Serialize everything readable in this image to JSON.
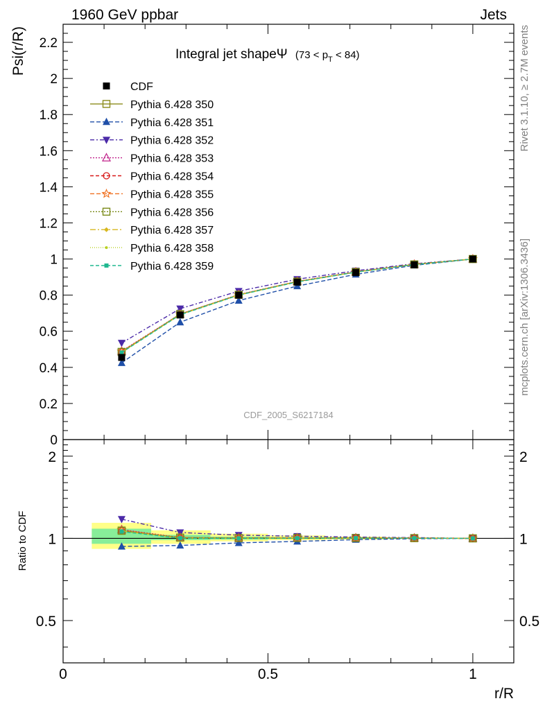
{
  "header": {
    "left": "1960 GeV ppbar",
    "right": "Jets"
  },
  "side_labels": {
    "rivet": "Rivet 3.1.10, ≥ 2.7M events",
    "mcplots": "mcplots.cern.ch [arXiv:1306.3436]"
  },
  "watermark": "CDF_2005_S6217184",
  "chart_data": {
    "type": "line",
    "title": "Integral jet shapeΨ",
    "title_suffix": "(73 < p",
    "title_sub": "T",
    "title_tail": " < 84)",
    "xlabel": "r/R",
    "ylabel": "Psi(r/R)",
    "ratio_ylabel": "Ratio to CDF",
    "xlim": [
      0,
      1.1
    ],
    "ylim": [
      0,
      2.3
    ],
    "ratio_ylim": [
      0.35,
      2.3
    ],
    "x_ticks": [
      "0",
      "0.5",
      "1"
    ],
    "y_ticks": [
      "0",
      "0.2",
      "0.4",
      "0.6",
      "0.8",
      "1",
      "1.2",
      "1.4",
      "1.6",
      "1.8",
      "2",
      "2.2"
    ],
    "ratio_y_ticks": [
      "0.5",
      "1",
      "2"
    ],
    "x": [
      0.1429,
      0.2857,
      0.4286,
      0.5714,
      0.7143,
      0.8571,
      1.0
    ],
    "data": {
      "name": "CDF",
      "values": [
        0.455,
        0.69,
        0.8,
        0.872,
        0.925,
        0.968,
        1.0
      ],
      "band_x": [
        [
          0.07,
          0.215
        ],
        [
          0.215,
          0.36
        ],
        [
          0.36,
          0.5
        ],
        [
          0.5,
          0.64
        ],
        [
          0.64,
          0.785
        ],
        [
          0.785,
          0.93
        ],
        [
          0.93,
          1.07
        ]
      ],
      "ratio_band_yellow": [
        [
          0.915,
          1.14
        ],
        [
          0.955,
          1.07
        ],
        [
          0.975,
          1.04
        ],
        [
          0.985,
          1.025
        ],
        [
          0.99,
          1.015
        ],
        [
          0.995,
          1.008
        ],
        [
          0.999,
          1.002
        ]
      ],
      "ratio_band_green": [
        [
          0.955,
          1.085
        ],
        [
          0.985,
          1.03
        ],
        [
          0.99,
          1.015
        ],
        [
          0.995,
          1.01
        ],
        [
          0.997,
          1.006
        ],
        [
          0.998,
          1.003
        ],
        [
          0.999,
          1.001
        ]
      ]
    },
    "series": [
      {
        "name": "Pythia 6.428 350",
        "color": "#8b8b1a",
        "dash": "",
        "marker": "square-open",
        "values": [
          0.485,
          0.695,
          0.802,
          0.875,
          0.928,
          0.97,
          1.0
        ]
      },
      {
        "name": "Pythia 6.428 351",
        "color": "#1f4fa8",
        "dash": "6,3",
        "marker": "triangle-up",
        "values": [
          0.425,
          0.65,
          0.77,
          0.85,
          0.915,
          0.965,
          1.0
        ]
      },
      {
        "name": "Pythia 6.428 352",
        "color": "#4b2aa8",
        "dash": "6,3,2,3",
        "marker": "triangle-down",
        "values": [
          0.535,
          0.725,
          0.822,
          0.888,
          0.935,
          0.974,
          1.0
        ]
      },
      {
        "name": "Pythia 6.428 353",
        "color": "#c0208a",
        "dash": "2,2",
        "marker": "triangle-open",
        "values": [
          0.49,
          0.695,
          0.803,
          0.876,
          0.929,
          0.971,
          1.0
        ]
      },
      {
        "name": "Pythia 6.428 354",
        "color": "#d81818",
        "dash": "5,3",
        "marker": "circle-open",
        "values": [
          0.485,
          0.693,
          0.801,
          0.875,
          0.928,
          0.97,
          1.0
        ]
      },
      {
        "name": "Pythia 6.428 355",
        "color": "#f07020",
        "dash": "6,3",
        "marker": "star-open",
        "values": [
          0.488,
          0.694,
          0.802,
          0.875,
          0.928,
          0.97,
          1.0
        ]
      },
      {
        "name": "Pythia 6.428 356",
        "color": "#7a8a1a",
        "dash": "2,2",
        "marker": "square-open",
        "values": [
          0.486,
          0.694,
          0.802,
          0.875,
          0.928,
          0.97,
          1.0
        ]
      },
      {
        "name": "Pythia 6.428 357",
        "color": "#d8b820",
        "dash": "8,3,2,3",
        "marker": "diamond-small",
        "values": [
          0.484,
          0.692,
          0.801,
          0.874,
          0.928,
          0.97,
          1.0
        ]
      },
      {
        "name": "Pythia 6.428 358",
        "color": "#b8d020",
        "dash": "1,2",
        "marker": "dot",
        "values": [
          0.483,
          0.692,
          0.8,
          0.874,
          0.927,
          0.97,
          1.0
        ]
      },
      {
        "name": "Pythia 6.428 359",
        "color": "#20b890",
        "dash": "5,3",
        "marker": "square-small",
        "values": [
          0.482,
          0.691,
          0.8,
          0.873,
          0.927,
          0.969,
          1.0
        ]
      }
    ]
  }
}
